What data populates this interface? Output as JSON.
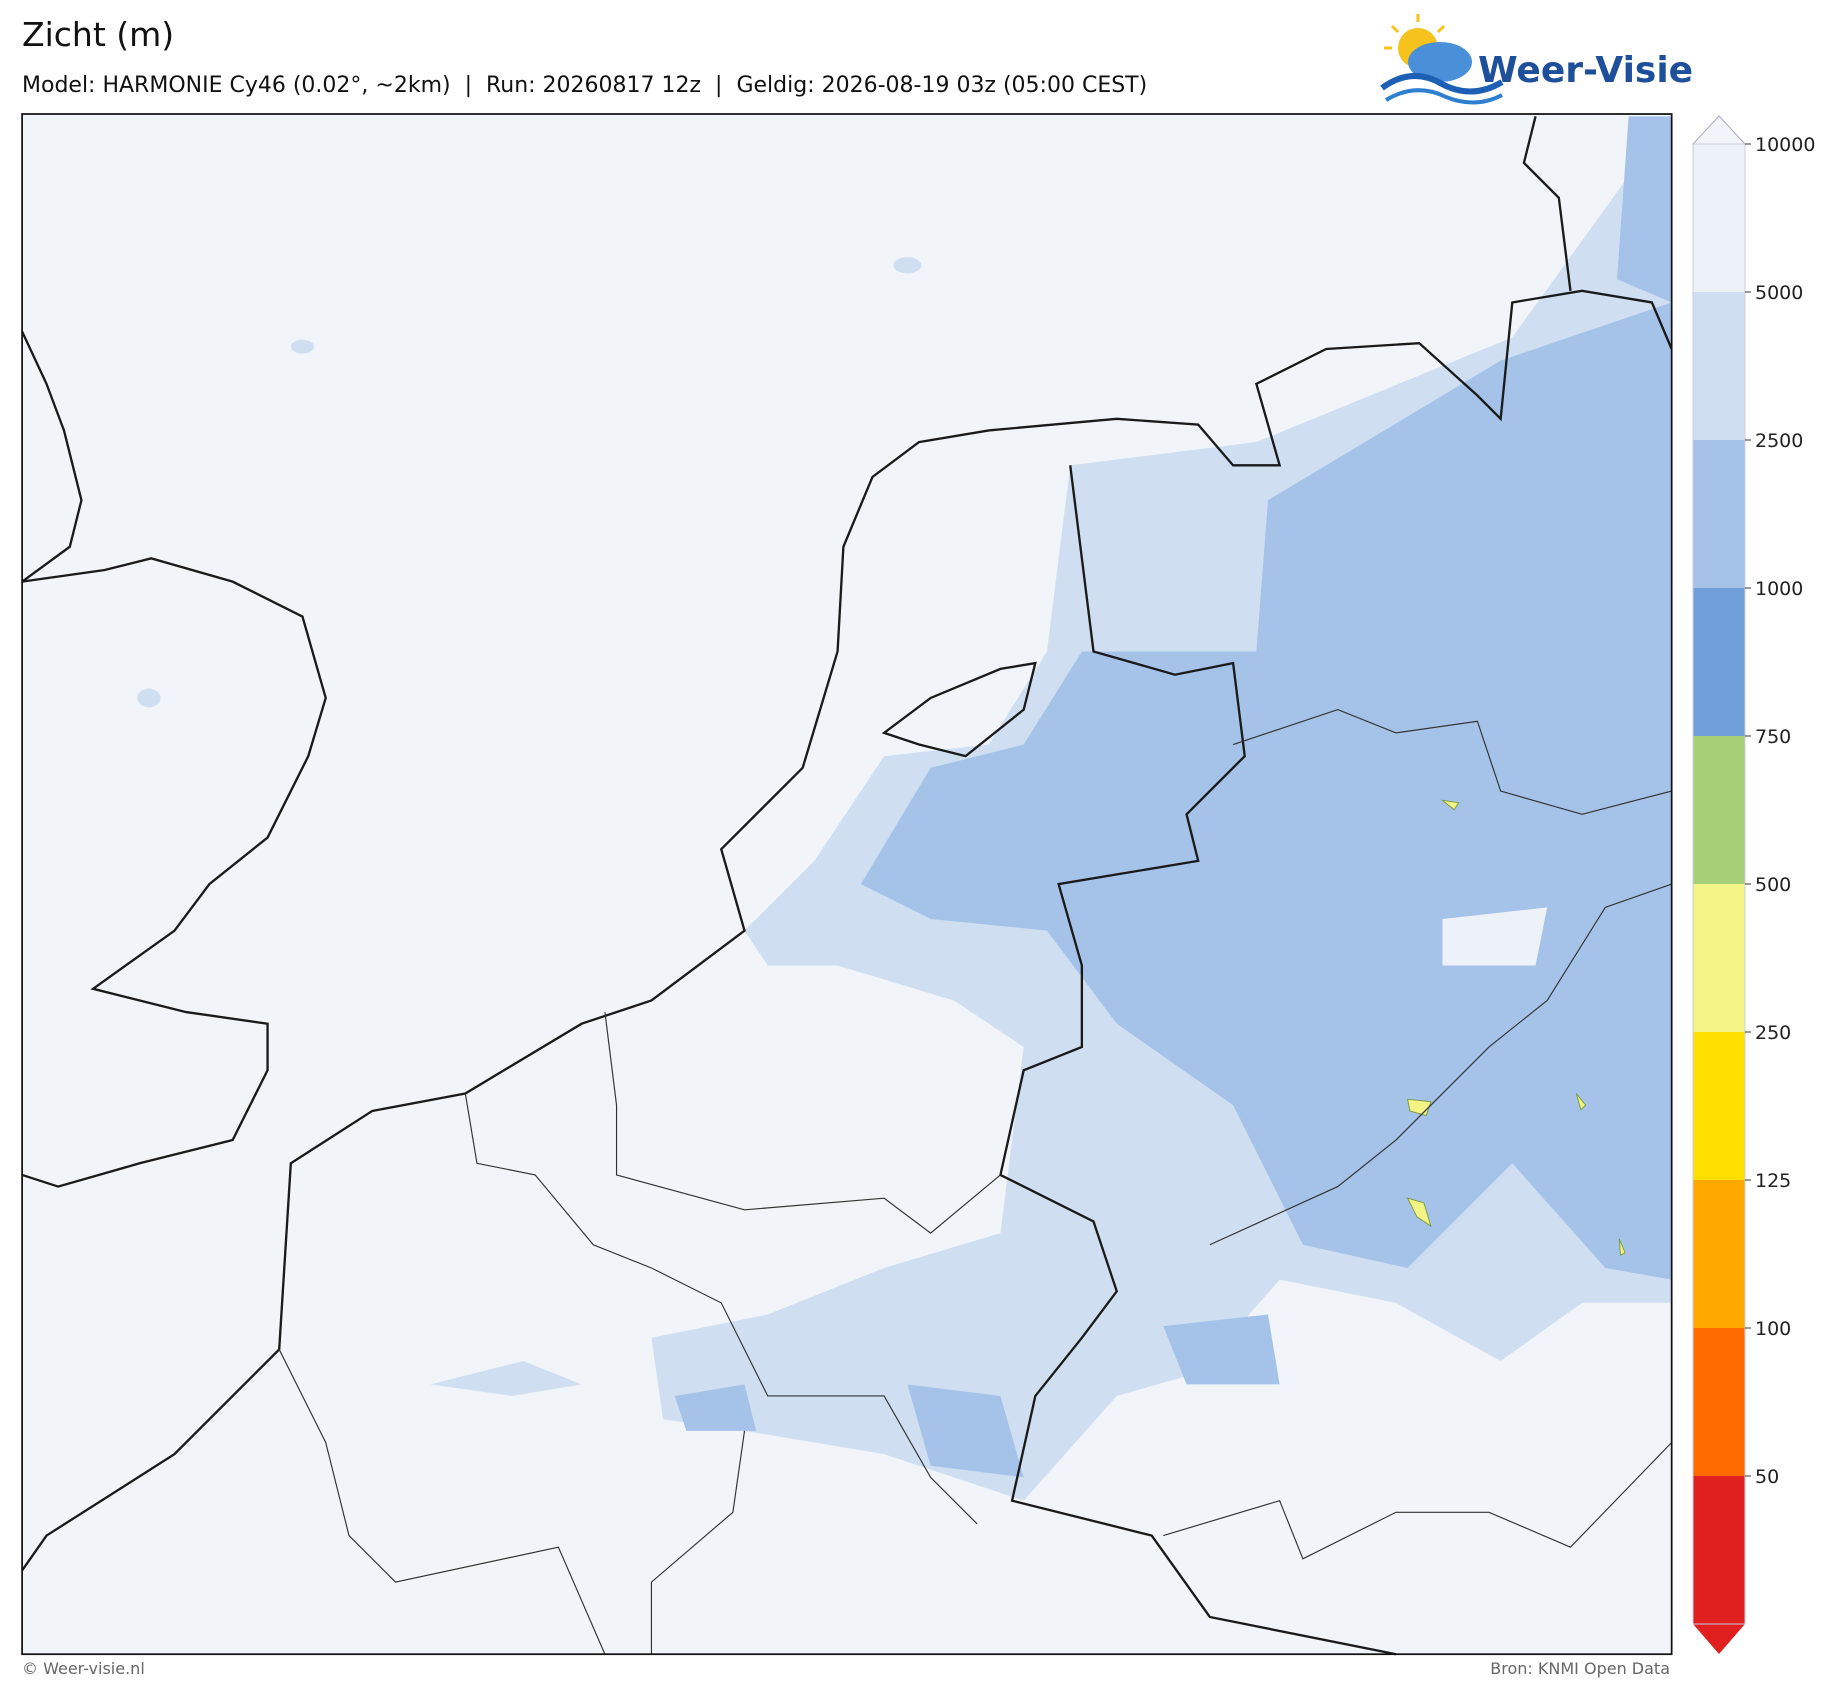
{
  "header": {
    "title": "Zicht (m)",
    "subtitle": "Model: HARMONIE Cy46 (0.02°, ~2km)  |  Run: 20260817 12z  |  Geldig: 2026-08-19 03z (05:00 CEST)",
    "logo": "Weer-Visie"
  },
  "colorbar": {
    "levels": [
      50,
      100,
      125,
      250,
      500,
      750,
      1000,
      2500,
      5000,
      10000
    ],
    "colors": [
      "#e01f1f",
      "#ff6a00",
      "#ffa800",
      "#ffdf00",
      "#f3f386",
      "#a7cf78",
      "#6fa0da",
      "#a5c3e9",
      "#cfdff1",
      "#edf2f8",
      "#f1f4f9"
    ]
  },
  "footer": {
    "left": "© Weer-visie.nl",
    "right": "Bron: KNMI Open Data"
  }
}
